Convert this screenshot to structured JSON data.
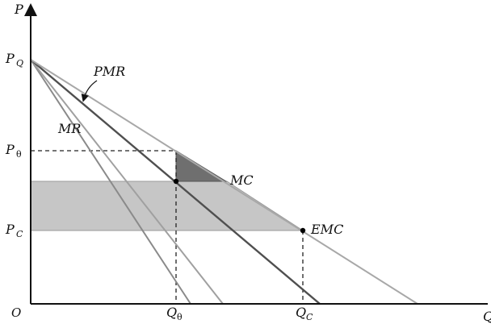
{
  "axes": {
    "y_label": "P",
    "x_label": "Q",
    "origin_label": "O"
  },
  "y_ticks": {
    "pq": {
      "main": "P",
      "sub": "Q"
    },
    "ptheta": {
      "main": "P",
      "sub": "θ"
    },
    "pc": {
      "main": "P",
      "sub": "C"
    }
  },
  "x_ticks": {
    "qtheta": {
      "main": "Q",
      "sub": "θ"
    },
    "qc": {
      "main": "Q",
      "sub": "C"
    }
  },
  "curves": {
    "mr": "MR",
    "pmr": "PMR",
    "mc": "MC",
    "emc": "EMC"
  },
  "colors": {
    "axis": "#111111",
    "line_dark": "#555555",
    "line_mid": "#8a8a8a",
    "line_light": "#a8a8a8",
    "shade_rect": "#c4c4c4",
    "shade_triangle": "#6e6e6e"
  }
}
